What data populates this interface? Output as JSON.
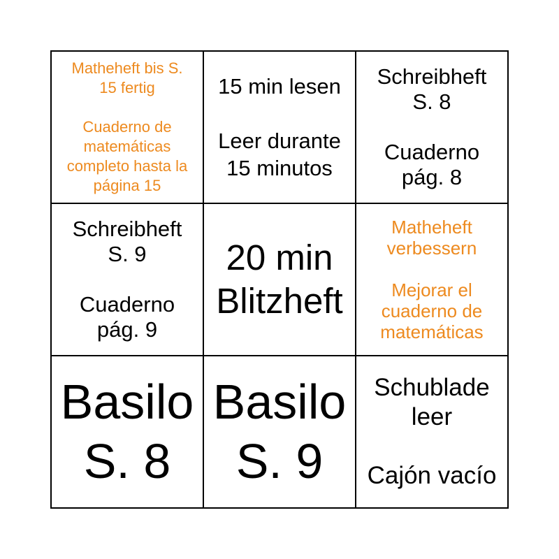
{
  "page_background": "#ffffff",
  "colors": {
    "grid_line": "#000000",
    "black_text": "#000000",
    "orange_text": "#ED8A1F",
    "cell_background": "#ffffff"
  },
  "bingo_card": {
    "rows": 3,
    "columns": 3,
    "cells": [
      {
        "row": 0,
        "col": 0,
        "color": "#ED8A1F",
        "text": "Matheheft bis S.\n15 fertig\n\nCuaderno de\nmatemáticas\ncompleto hasta la\npágina 15"
      },
      {
        "row": 0,
        "col": 1,
        "color": "#000000",
        "text": "15 min lesen\n\nLeer durante\n15 minutos"
      },
      {
        "row": 0,
        "col": 2,
        "color": "#000000",
        "text": "Schreibheft\nS. 8\n\nCuaderno\npág. 8"
      },
      {
        "row": 1,
        "col": 0,
        "color": "#000000",
        "text": "Schreibheft\nS. 9\n\nCuaderno\npág. 9"
      },
      {
        "row": 1,
        "col": 1,
        "color": "#000000",
        "text": "20 min\nBlitzheft"
      },
      {
        "row": 1,
        "col": 2,
        "color": "#ED8A1F",
        "text": "Matheheft\nverbessern\n\nMejorar el\ncuaderno de\nmatemáticas"
      },
      {
        "row": 2,
        "col": 0,
        "color": "#000000",
        "text": "Basilo\nS. 8"
      },
      {
        "row": 2,
        "col": 1,
        "color": "#000000",
        "text": "Basilo\nS. 9"
      },
      {
        "row": 2,
        "col": 2,
        "color": "#000000",
        "text": "Schublade\nleer\n\nCajón vacío"
      }
    ]
  }
}
